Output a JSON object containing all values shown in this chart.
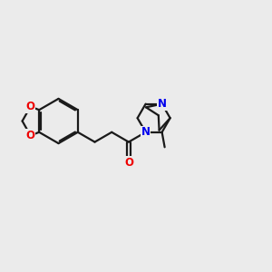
{
  "bg_color": "#ebebeb",
  "bond_color": "#1a1a1a",
  "N_color": "#0000ee",
  "O_color": "#ee0000",
  "line_width": 1.6,
  "font_size": 8.5,
  "fig_size": [
    3.0,
    3.0
  ],
  "dpi": 100,
  "xlim": [
    0,
    10
  ],
  "ylim": [
    0,
    10
  ]
}
